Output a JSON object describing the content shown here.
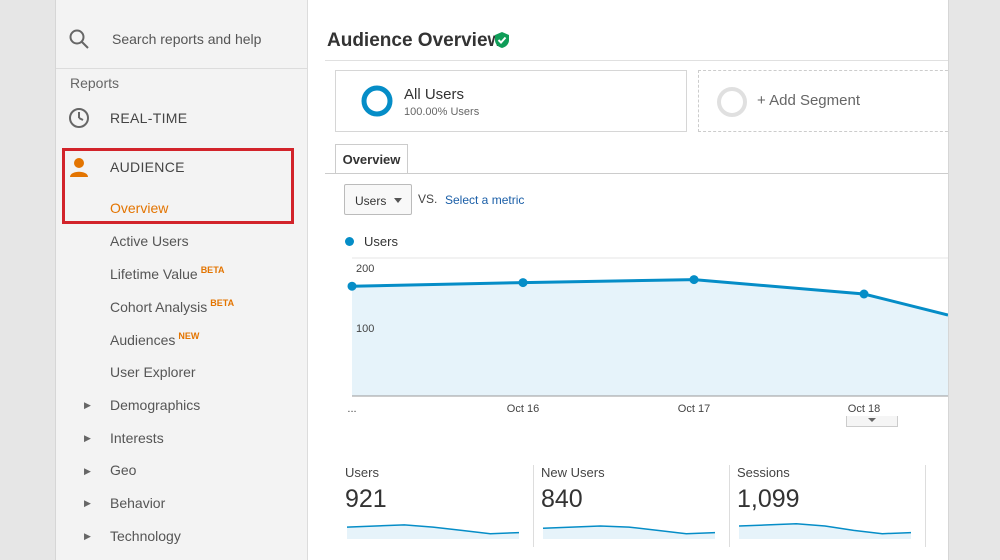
{
  "sidebar": {
    "search_placeholder": "Search reports and help",
    "reports_label": "Reports",
    "realtime_label": "REAL-TIME",
    "audience_label": "AUDIENCE",
    "audience_items": [
      {
        "label": "Overview",
        "active": true
      },
      {
        "label": "Active Users"
      },
      {
        "label": "Lifetime Value",
        "badge": "BETA"
      },
      {
        "label": "Cohort Analysis",
        "badge": "BETA"
      },
      {
        "label": "Audiences",
        "badge": "NEW"
      },
      {
        "label": "User Explorer"
      }
    ],
    "expandable_items": [
      "Demographics",
      "Interests",
      "Geo",
      "Behavior",
      "Technology"
    ]
  },
  "header": {
    "title": "Audience Overview"
  },
  "segments": {
    "active": {
      "name": "All Users",
      "percent": "100.00% Users"
    },
    "add_label": "+ Add Segment"
  },
  "tabs": [
    {
      "label": "Overview",
      "active": true
    }
  ],
  "controls": {
    "metric_dropdown": "Users",
    "vs_label": "VS.",
    "select_metric_link": "Select a metric"
  },
  "colors": {
    "accent": "#058dc7",
    "active_nav": "#e37400",
    "highlight_border": "#d2232a",
    "verified": "#0f9d58"
  },
  "chart_data": {
    "type": "line",
    "title": "",
    "series": [
      {
        "name": "Users",
        "values": [
          183,
          189,
          194,
          170,
          135
        ]
      }
    ],
    "x": [
      "...",
      "Oct 16",
      "Oct 17",
      "Oct 18",
      ""
    ],
    "ylabel": "",
    "yticks": [
      "200",
      "100"
    ],
    "ylim": [
      0,
      230
    ]
  },
  "metrics": [
    {
      "label": "Users",
      "value": "921",
      "spark": [
        0.55,
        0.5,
        0.45,
        0.55,
        0.7,
        0.85,
        0.8
      ]
    },
    {
      "label": "New Users",
      "value": "840",
      "spark": [
        0.6,
        0.55,
        0.5,
        0.55,
        0.7,
        0.85,
        0.8
      ]
    },
    {
      "label": "Sessions",
      "value": "1,099",
      "spark": [
        0.5,
        0.45,
        0.4,
        0.5,
        0.7,
        0.85,
        0.8
      ]
    }
  ]
}
